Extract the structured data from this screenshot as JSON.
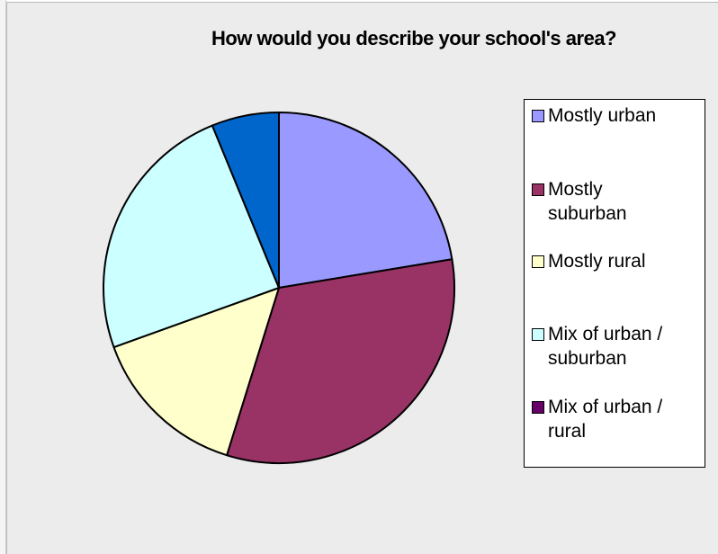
{
  "chart_data": {
    "type": "pie",
    "title": "How would you describe your school's area?",
    "categories": [
      "Mostly urban",
      "Mostly suburban",
      "Mostly rural",
      "Mix of urban / suburban",
      "Mix of urban / rural"
    ],
    "legend_labels": [
      [
        "Mostly urban"
      ],
      [
        "Mostly",
        "suburban"
      ],
      [
        "Mostly rural"
      ],
      [
        "Mix of urban /",
        "suburban"
      ],
      [
        "Mix of urban /",
        "rural"
      ]
    ],
    "values": [
      22.4,
      32.4,
      14.7,
      24.3,
      6.2
    ],
    "slice_order": [
      0,
      1,
      2,
      3,
      4
    ],
    "colors": [
      "#9999ff",
      "#993366",
      "#ffffcc",
      "#ccffff",
      "#0066cc"
    ],
    "legend_colors": [
      "#9999ff",
      "#993366",
      "#ffffcc",
      "#ccffff",
      "#660066"
    ],
    "start_angle": "12 o'clock, clockwise",
    "legend_position": "right"
  }
}
